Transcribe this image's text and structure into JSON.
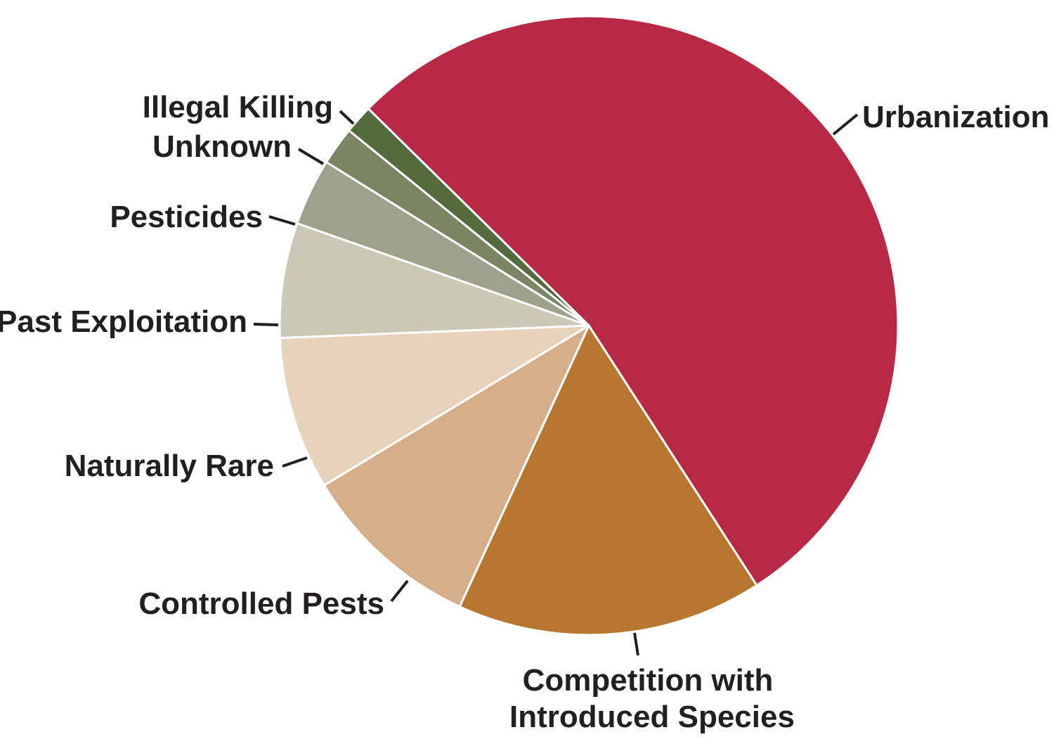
{
  "chart_data": {
    "type": "pie",
    "title": "",
    "slices": [
      {
        "label": "Urbanization",
        "value": 53.5,
        "color": "#b72944"
      },
      {
        "label": "Competition with Introduced Species",
        "value": 16,
        "color": "#b87731"
      },
      {
        "label": "Controlled Pests",
        "value": 9.5,
        "color": "#d6ae89"
      },
      {
        "label": "Naturally Rare",
        "value": 8,
        "color": "#e7d3bb"
      },
      {
        "label": "Past Exploitation",
        "value": 6,
        "color": "#cbc8b5"
      },
      {
        "label": "Pesticides",
        "value": 3.5,
        "color": "#9ca38a"
      },
      {
        "label": "Unknown",
        "value": 2,
        "color": "#7a8564"
      },
      {
        "label": "Illegal Killing",
        "value": 1.5,
        "color": "#536b3d"
      }
    ]
  }
}
